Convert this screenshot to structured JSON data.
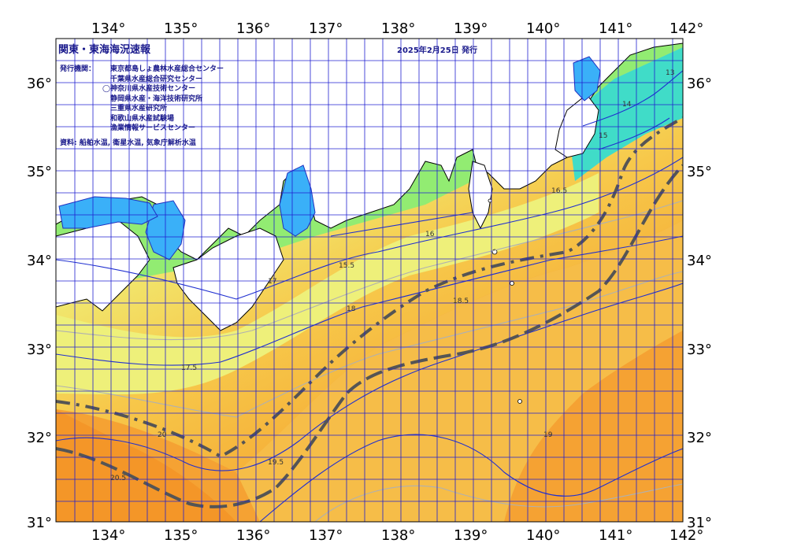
{
  "map": {
    "title": "関東・東海海況速報",
    "issue_date": "2025年2月25日 発行",
    "issuer_label": "発行機関：",
    "agencies": [
      "東京都島しょ農林水産総合センター",
      "千葉県水産総合研究センター",
      "◯神奈川県水産技術センター",
      "静岡県水産・海洋技術研究所",
      "三重県水産研究所",
      "和歌山県水産試験場",
      "漁業情報サービスセンター"
    ],
    "source": "資料: 船舶水温, 衛星水温, 気象庁解析水温",
    "lon_ticks": [
      "134°",
      "135°",
      "136°",
      "137°",
      "138°",
      "139°",
      "140°",
      "141°",
      "142°"
    ],
    "lat_ticks": [
      "36°",
      "35°",
      "34°",
      "33°",
      "32°",
      "31°"
    ],
    "contour_labels": [
      "13",
      "14",
      "15",
      "15.5",
      "16",
      "16.5",
      "17",
      "17.5",
      "18",
      "18.5",
      "19",
      "19.5",
      "20",
      "20.5"
    ],
    "colors": {
      "warm": "#f5a030",
      "mid": "#f7d558",
      "cool": "#eff078",
      "green": "#90ee70",
      "cyan": "#40e0c8",
      "bay": "#3ab0f8",
      "grid": "#2020d0",
      "land": "#ffffff"
    }
  }
}
